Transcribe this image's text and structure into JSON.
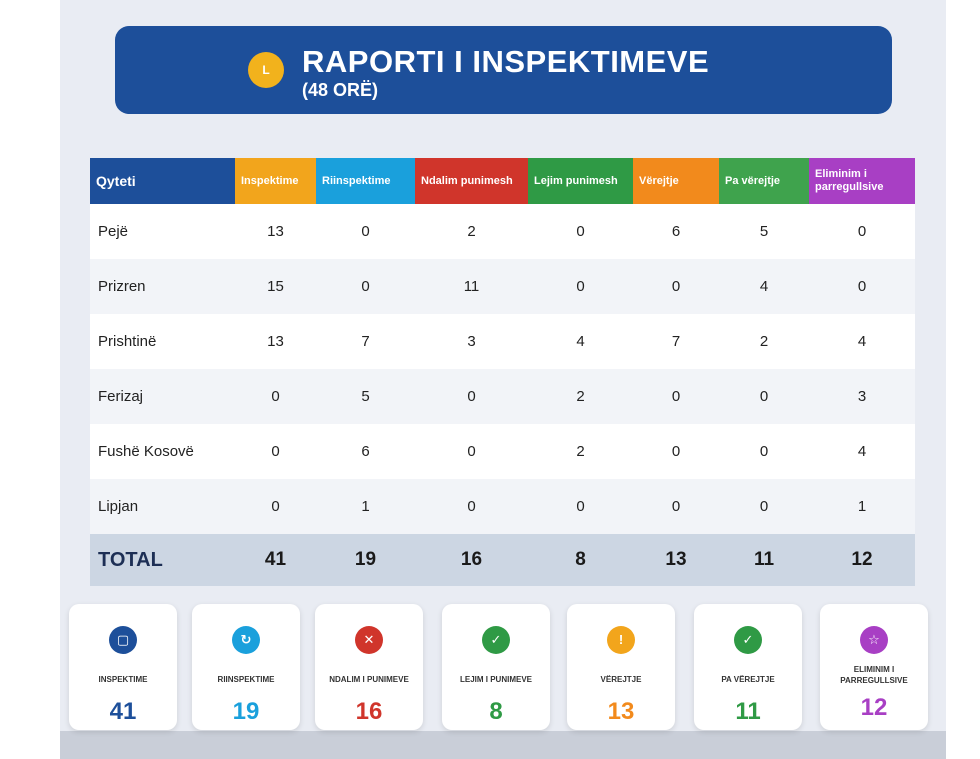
{
  "header": {
    "clock_glyph": "L",
    "title": "RAPORTI I INSPEKTIMEVE",
    "subtitle": "(48 ORË)",
    "background": "#1d4f9a"
  },
  "table": {
    "columns": [
      {
        "label": "Qyteti",
        "color": "#1d4f9a"
      },
      {
        "label": "Inspektime",
        "color": "#f2a51c"
      },
      {
        "label": "Riinspektime",
        "color": "#1aa0dc"
      },
      {
        "label": "Ndalim punimesh",
        "color": "#d0352b"
      },
      {
        "label": "Lejim punimesh",
        "color": "#2f9a45"
      },
      {
        "label": "Vërejtje",
        "color": "#f28a1c"
      },
      {
        "label": "Pa vërejtje",
        "color": "#3fa34d"
      },
      {
        "label": "Eliminim i parregullsive",
        "color": "#a83fc4"
      }
    ],
    "rows": [
      {
        "city": "Pejë",
        "values": [
          "13",
          "0",
          "2",
          "0",
          "6",
          "5",
          "0"
        ]
      },
      {
        "city": "Prizren",
        "values": [
          "15",
          "0",
          "11",
          "0",
          "0",
          "4",
          "0"
        ]
      },
      {
        "city": "Prishtinë",
        "values": [
          "13",
          "7",
          "3",
          "4",
          "7",
          "2",
          "4"
        ]
      },
      {
        "city": "Ferizaj",
        "values": [
          "0",
          "5",
          "0",
          "2",
          "0",
          "0",
          "3"
        ]
      },
      {
        "city": "Fushë Kosovë",
        "values": [
          "0",
          "6",
          "0",
          "2",
          "0",
          "0",
          "4"
        ]
      },
      {
        "city": "Lipjan",
        "values": [
          "0",
          "1",
          "0",
          "0",
          "0",
          "0",
          "1"
        ]
      }
    ],
    "total": {
      "label": "TOTAL",
      "values": [
        "41",
        "19",
        "16",
        "8",
        "13",
        "11",
        "12"
      ]
    }
  },
  "cards": [
    {
      "label": "INSPEKTIME",
      "value": "41",
      "color": "#1d4f9a",
      "icon": "square-icon",
      "glyph": "▢",
      "icon_color": "#1d4f9a"
    },
    {
      "label": "RIINSPEKTIME",
      "value": "19",
      "color": "#1aa0dc",
      "icon": "refresh-icon",
      "glyph": "↻",
      "icon_color": "#1aa0dc"
    },
    {
      "label": "NDALIM I PUNIMEVE",
      "value": "16",
      "color": "#d0352b",
      "icon": "x-icon",
      "glyph": "✕",
      "icon_color": "#d0352b"
    },
    {
      "label": "LEJIM I PUNIMEVE",
      "value": "8",
      "color": "#2f9a45",
      "icon": "check-icon",
      "glyph": "✓",
      "icon_color": "#2f9a45"
    },
    {
      "label": "VËREJTJE",
      "value": "13",
      "color": "#f28a1c",
      "icon": "exclamation-icon",
      "glyph": "!",
      "icon_color": "#f2a51c"
    },
    {
      "label": "PA VËREJTJE",
      "value": "11",
      "color": "#2f9a45",
      "icon": "check-icon",
      "glyph": "✓",
      "icon_color": "#2f9a45"
    },
    {
      "label": "ELIMINIM I PARREGULLSIVE",
      "value": "12",
      "color": "#a83fc4",
      "icon": "star-icon",
      "glyph": "☆",
      "icon_color": "#a83fc4"
    }
  ]
}
